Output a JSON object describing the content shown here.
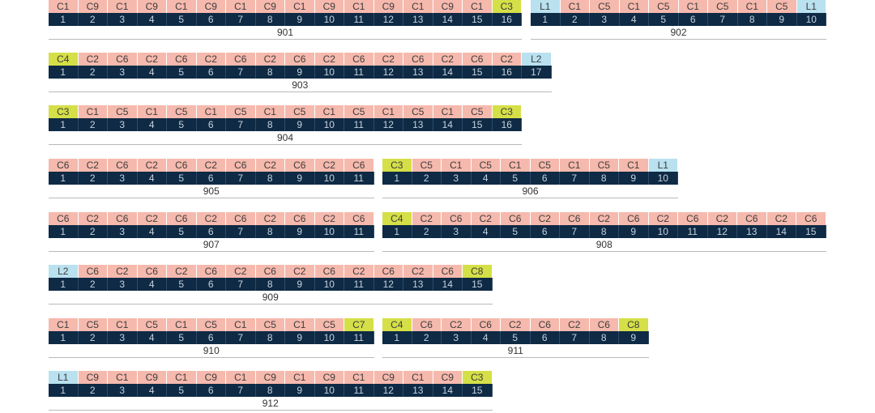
{
  "colors": {
    "C": "#f6b9ad",
    "L": "#b9e1ef",
    "end": "#d5df47"
  },
  "groups": [
    {
      "id": "901",
      "cells": [
        [
          "C1",
          "C"
        ],
        [
          "C9",
          "C"
        ],
        [
          "C1",
          "C"
        ],
        [
          "C9",
          "C"
        ],
        [
          "C1",
          "C"
        ],
        [
          "C9",
          "C"
        ],
        [
          "C1",
          "C"
        ],
        [
          "C9",
          "C"
        ],
        [
          "C1",
          "C"
        ],
        [
          "C9",
          "C"
        ],
        [
          "C1",
          "C"
        ],
        [
          "C9",
          "C"
        ],
        [
          "C1",
          "C"
        ],
        [
          "C9",
          "C"
        ],
        [
          "C1",
          "C"
        ],
        [
          "C3",
          "end"
        ]
      ]
    },
    {
      "id": "902",
      "cells": [
        [
          "L1",
          "L"
        ],
        [
          "C1",
          "C"
        ],
        [
          "C5",
          "C"
        ],
        [
          "C1",
          "C"
        ],
        [
          "C5",
          "C"
        ],
        [
          "C1",
          "C"
        ],
        [
          "C5",
          "C"
        ],
        [
          "C1",
          "C"
        ],
        [
          "C5",
          "C"
        ],
        [
          "L1",
          "L"
        ]
      ]
    },
    {
      "id": "903",
      "cells": [
        [
          "C4",
          "end"
        ],
        [
          "C2",
          "C"
        ],
        [
          "C6",
          "C"
        ],
        [
          "C2",
          "C"
        ],
        [
          "C6",
          "C"
        ],
        [
          "C2",
          "C"
        ],
        [
          "C6",
          "C"
        ],
        [
          "C2",
          "C"
        ],
        [
          "C6",
          "C"
        ],
        [
          "C2",
          "C"
        ],
        [
          "C6",
          "C"
        ],
        [
          "C2",
          "C"
        ],
        [
          "C6",
          "C"
        ],
        [
          "C2",
          "C"
        ],
        [
          "C6",
          "C"
        ],
        [
          "C2",
          "C"
        ],
        [
          "L2",
          "L"
        ]
      ]
    },
    {
      "id": "904",
      "cells": [
        [
          "C3",
          "end"
        ],
        [
          "C1",
          "C"
        ],
        [
          "C5",
          "C"
        ],
        [
          "C1",
          "C"
        ],
        [
          "C5",
          "C"
        ],
        [
          "C1",
          "C"
        ],
        [
          "C5",
          "C"
        ],
        [
          "C1",
          "C"
        ],
        [
          "C5",
          "C"
        ],
        [
          "C1",
          "C"
        ],
        [
          "C5",
          "C"
        ],
        [
          "C1",
          "C"
        ],
        [
          "C5",
          "C"
        ],
        [
          "C1",
          "C"
        ],
        [
          "C5",
          "C"
        ],
        [
          "C3",
          "end"
        ]
      ]
    },
    {
      "id": "905",
      "cells": [
        [
          "C6",
          "C"
        ],
        [
          "C2",
          "C"
        ],
        [
          "C6",
          "C"
        ],
        [
          "C2",
          "C"
        ],
        [
          "C6",
          "C"
        ],
        [
          "C2",
          "C"
        ],
        [
          "C6",
          "C"
        ],
        [
          "C2",
          "C"
        ],
        [
          "C6",
          "C"
        ],
        [
          "C2",
          "C"
        ],
        [
          "C6",
          "C"
        ]
      ]
    },
    {
      "id": "906",
      "cells": [
        [
          "C3",
          "end"
        ],
        [
          "C5",
          "C"
        ],
        [
          "C1",
          "C"
        ],
        [
          "C5",
          "C"
        ],
        [
          "C1",
          "C"
        ],
        [
          "C5",
          "C"
        ],
        [
          "C1",
          "C"
        ],
        [
          "C5",
          "C"
        ],
        [
          "C1",
          "C"
        ],
        [
          "L1",
          "L"
        ]
      ]
    },
    {
      "id": "907",
      "cells": [
        [
          "C6",
          "C"
        ],
        [
          "C2",
          "C"
        ],
        [
          "C6",
          "C"
        ],
        [
          "C2",
          "C"
        ],
        [
          "C6",
          "C"
        ],
        [
          "C2",
          "C"
        ],
        [
          "C6",
          "C"
        ],
        [
          "C2",
          "C"
        ],
        [
          "C6",
          "C"
        ],
        [
          "C2",
          "C"
        ],
        [
          "C6",
          "C"
        ]
      ]
    },
    {
      "id": "908",
      "cells": [
        [
          "C4",
          "end"
        ],
        [
          "C2",
          "C"
        ],
        [
          "C6",
          "C"
        ],
        [
          "C2",
          "C"
        ],
        [
          "C6",
          "C"
        ],
        [
          "C2",
          "C"
        ],
        [
          "C6",
          "C"
        ],
        [
          "C2",
          "C"
        ],
        [
          "C6",
          "C"
        ],
        [
          "C2",
          "C"
        ],
        [
          "C6",
          "C"
        ],
        [
          "C2",
          "C"
        ],
        [
          "C6",
          "C"
        ],
        [
          "C2",
          "C"
        ],
        [
          "C6",
          "C"
        ]
      ]
    },
    {
      "id": "909",
      "cells": [
        [
          "L2",
          "L"
        ],
        [
          "C6",
          "C"
        ],
        [
          "C2",
          "C"
        ],
        [
          "C6",
          "C"
        ],
        [
          "C2",
          "C"
        ],
        [
          "C6",
          "C"
        ],
        [
          "C2",
          "C"
        ],
        [
          "C6",
          "C"
        ],
        [
          "C2",
          "C"
        ],
        [
          "C6",
          "C"
        ],
        [
          "C2",
          "C"
        ],
        [
          "C6",
          "C"
        ],
        [
          "C2",
          "C"
        ],
        [
          "C6",
          "C"
        ],
        [
          "C8",
          "end"
        ]
      ]
    },
    {
      "id": "910",
      "cells": [
        [
          "C1",
          "C"
        ],
        [
          "C5",
          "C"
        ],
        [
          "C1",
          "C"
        ],
        [
          "C5",
          "C"
        ],
        [
          "C1",
          "C"
        ],
        [
          "C5",
          "C"
        ],
        [
          "C1",
          "C"
        ],
        [
          "C5",
          "C"
        ],
        [
          "C1",
          "C"
        ],
        [
          "C5",
          "C"
        ],
        [
          "C7",
          "end"
        ]
      ]
    },
    {
      "id": "911",
      "cells": [
        [
          "C4",
          "end"
        ],
        [
          "C6",
          "C"
        ],
        [
          "C2",
          "C"
        ],
        [
          "C6",
          "C"
        ],
        [
          "C2",
          "C"
        ],
        [
          "C6",
          "C"
        ],
        [
          "C2",
          "C"
        ],
        [
          "C6",
          "C"
        ],
        [
          "C8",
          "end"
        ]
      ]
    },
    {
      "id": "912",
      "cells": [
        [
          "L1",
          "L"
        ],
        [
          "C9",
          "C"
        ],
        [
          "C1",
          "C"
        ],
        [
          "C9",
          "C"
        ],
        [
          "C1",
          "C"
        ],
        [
          "C9",
          "C"
        ],
        [
          "C1",
          "C"
        ],
        [
          "C9",
          "C"
        ],
        [
          "C1",
          "C"
        ],
        [
          "C9",
          "C"
        ],
        [
          "C1",
          "C"
        ],
        [
          "C9",
          "C"
        ],
        [
          "C1",
          "C"
        ],
        [
          "C9",
          "C"
        ],
        [
          "C3",
          "end"
        ]
      ]
    }
  ]
}
